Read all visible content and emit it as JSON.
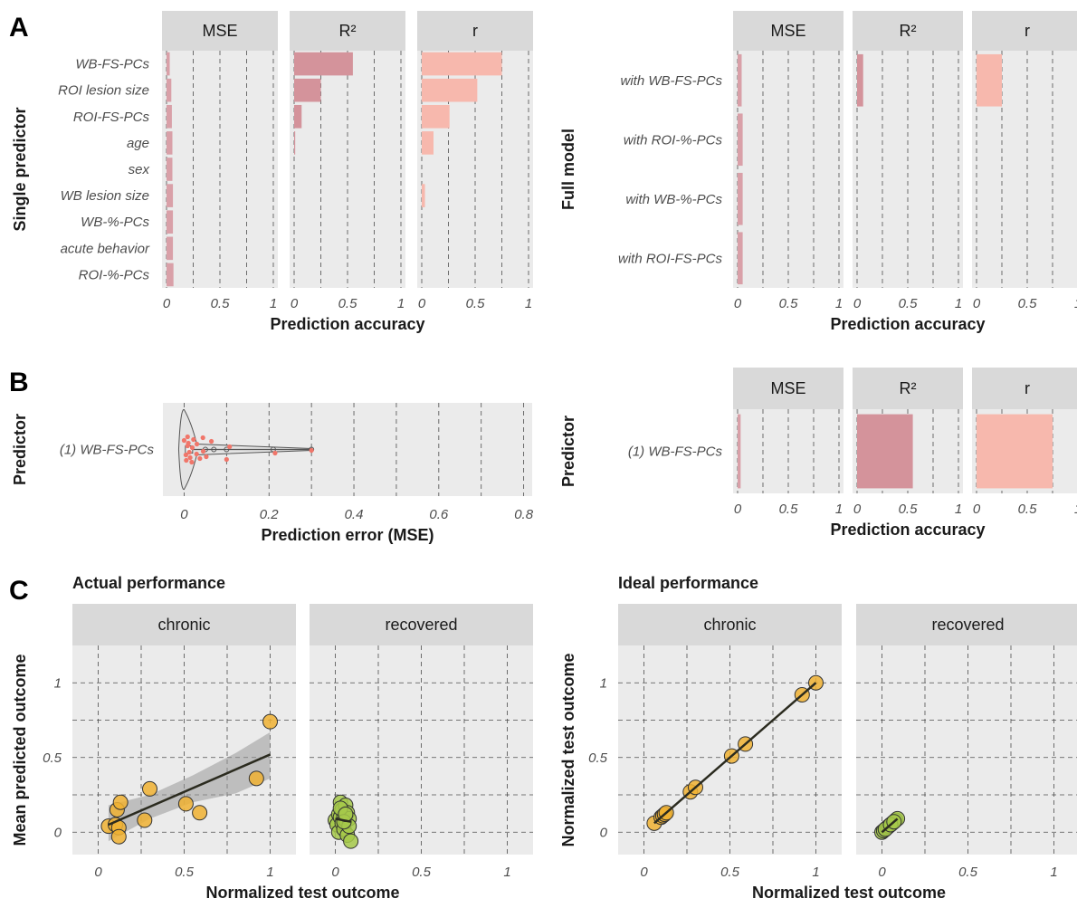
{
  "panels": {
    "A": "A",
    "B": "B",
    "C": "C"
  },
  "chart_data": [
    {
      "id": "A-left",
      "type": "bar",
      "orientation": "horizontal",
      "facets": [
        "MSE",
        "R²",
        "r"
      ],
      "categories": [
        "WB-FS-PCs",
        "ROI lesion size",
        "ROI-FS-PCs",
        "age",
        "sex",
        "WB lesion size",
        "WB-%-PCs",
        "acute behavior",
        "ROI-%-PCs"
      ],
      "series": [
        {
          "facet": "MSE",
          "values": [
            0.03,
            0.045,
            0.05,
            0.055,
            0.055,
            0.06,
            0.06,
            0.06,
            0.065
          ],
          "color": "#d9a0a8"
        },
        {
          "facet": "R²",
          "values": [
            0.55,
            0.25,
            0.07,
            0.01,
            0,
            0,
            0,
            0,
            0
          ],
          "color": "#d4939b"
        },
        {
          "facet": "r",
          "values": [
            0.75,
            0.52,
            0.26,
            0.11,
            0,
            0.03,
            0,
            0,
            0
          ],
          "color": "#f7b8ad"
        }
      ],
      "xlabel": "Prediction accuracy",
      "ylabel": "Single predictor",
      "xlim": [
        0,
        1
      ],
      "xticks": [
        "0",
        "0.5",
        "1"
      ]
    },
    {
      "id": "A-right",
      "type": "bar",
      "orientation": "horizontal",
      "facets": [
        "MSE",
        "R²",
        "r"
      ],
      "categories": [
        "with WB-FS-PCs",
        "with ROI-%-PCs",
        "with WB-%-PCs",
        "with ROI-FS-PCs"
      ],
      "series": [
        {
          "facet": "MSE",
          "values": [
            0.04,
            0.05,
            0.05,
            0.05
          ],
          "color": "#d9a0a8"
        },
        {
          "facet": "R²",
          "values": [
            0.06,
            0,
            0,
            0
          ],
          "color": "#d4939b"
        },
        {
          "facet": "r",
          "values": [
            0.25,
            0,
            0,
            0
          ],
          "color": "#f7b8ad"
        }
      ],
      "xlabel": "Prediction accuracy",
      "ylabel": "Full model",
      "xlim": [
        0,
        1
      ],
      "xticks": [
        "0",
        "0.5",
        "1"
      ]
    },
    {
      "id": "B-left",
      "type": "scatter",
      "subtype": "violin-boxplot-jitter",
      "categories": [
        "(1) WB-FS-PCs"
      ],
      "points": [
        0,
        0.002,
        0.004,
        0.005,
        0.006,
        0.008,
        0.01,
        0.012,
        0.015,
        0.018,
        0.02,
        0.025,
        0.03,
        0.035,
        0.04,
        0.045,
        0.05,
        0.06,
        0.1,
        0.105,
        0.21,
        0.3
      ],
      "xlabel": "Prediction error (MSE)",
      "ylabel": "Predictor",
      "xlim": [
        -0.05,
        0.82
      ],
      "xticks": [
        "0",
        "0.2",
        "0.4",
        "0.6",
        "0.8"
      ]
    },
    {
      "id": "B-right",
      "type": "bar",
      "orientation": "horizontal",
      "facets": [
        "MSE",
        "R²",
        "r"
      ],
      "categories": [
        "(1) WB-FS-PCs"
      ],
      "series": [
        {
          "facet": "MSE",
          "values": [
            0.03
          ],
          "color": "#d9a0a8"
        },
        {
          "facet": "R²",
          "values": [
            0.55
          ],
          "color": "#d4939b"
        },
        {
          "facet": "r",
          "values": [
            0.75
          ],
          "color": "#f7b8ad"
        }
      ],
      "xlabel": "Prediction accuracy",
      "ylabel": "Predictor",
      "xlim": [
        0,
        1
      ],
      "xticks": [
        "0",
        "0.5",
        "1"
      ]
    },
    {
      "id": "C-left",
      "type": "scatter",
      "title": "Actual performance",
      "facets": [
        "chronic",
        "recovered"
      ],
      "xlabel": "Normalized test outcome",
      "ylabel": "Mean predicted outcome",
      "xlim": [
        -0.15,
        1.15
      ],
      "ylim": [
        -0.15,
        1.25
      ],
      "xticks": [
        "0",
        "0.5",
        "1"
      ],
      "yticks": [
        "0",
        "0.5",
        "1"
      ],
      "chronic": {
        "x": [
          0.06,
          0.1,
          0.11,
          0.12,
          0.12,
          0.13,
          0.27,
          0.3,
          0.51,
          0.59,
          0.92,
          1.0
        ],
        "y": [
          0.04,
          0.05,
          0.15,
          0.03,
          -0.03,
          0.2,
          0.08,
          0.29,
          0.19,
          0.13,
          0.36,
          0.74
        ],
        "color": "#f0b232",
        "fit": {
          "x": [
            0.06,
            1.0
          ],
          "y": [
            0.05,
            0.52
          ]
        }
      },
      "recovered": {
        "x": [
          0.0,
          0.01,
          0.02,
          0.02,
          0.03,
          0.03,
          0.04,
          0.04,
          0.05,
          0.05,
          0.06,
          0.06,
          0.07,
          0.07,
          0.08,
          0.08,
          0.09,
          0.03,
          0.05,
          0.06
        ],
        "y": [
          0.08,
          0.05,
          0.12,
          0.0,
          0.2,
          0.1,
          0.06,
          0.15,
          0.02,
          0.11,
          0.18,
          0.08,
          0.13,
          -0.02,
          0.09,
          0.04,
          -0.06,
          0.16,
          0.07,
          0.12
        ],
        "color": "#a6c94a",
        "fit": {
          "x": [
            0.0,
            0.09
          ],
          "y": [
            0.09,
            0.07
          ]
        }
      }
    },
    {
      "id": "C-right",
      "type": "scatter",
      "title": "Ideal performance",
      "facets": [
        "chronic",
        "recovered"
      ],
      "xlabel": "Normalized test outcome",
      "ylabel": "Normalized test outcome",
      "xlim": [
        -0.15,
        1.15
      ],
      "ylim": [
        -0.15,
        1.25
      ],
      "xticks": [
        "0",
        "0.5",
        "1"
      ],
      "yticks": [
        "0",
        "0.5",
        "1"
      ],
      "chronic": {
        "x": [
          0.06,
          0.1,
          0.11,
          0.12,
          0.12,
          0.13,
          0.27,
          0.3,
          0.51,
          0.59,
          0.92,
          1.0
        ],
        "y": [
          0.06,
          0.1,
          0.11,
          0.12,
          0.12,
          0.13,
          0.27,
          0.3,
          0.51,
          0.59,
          0.92,
          1.0
        ],
        "color": "#f0b232",
        "fit": {
          "x": [
            0.06,
            1.0
          ],
          "y": [
            0.06,
            1.0
          ]
        }
      },
      "recovered": {
        "x": [
          0.0,
          0.01,
          0.02,
          0.03,
          0.04,
          0.05,
          0.06,
          0.07,
          0.08,
          0.09,
          0.02,
          0.05,
          0.07
        ],
        "y": [
          0.0,
          0.01,
          0.02,
          0.03,
          0.04,
          0.05,
          0.06,
          0.07,
          0.08,
          0.09,
          0.02,
          0.05,
          0.07
        ],
        "color": "#a6c94a",
        "fit": {
          "x": [
            0.0,
            0.09
          ],
          "y": [
            0.0,
            0.09
          ]
        }
      }
    }
  ]
}
